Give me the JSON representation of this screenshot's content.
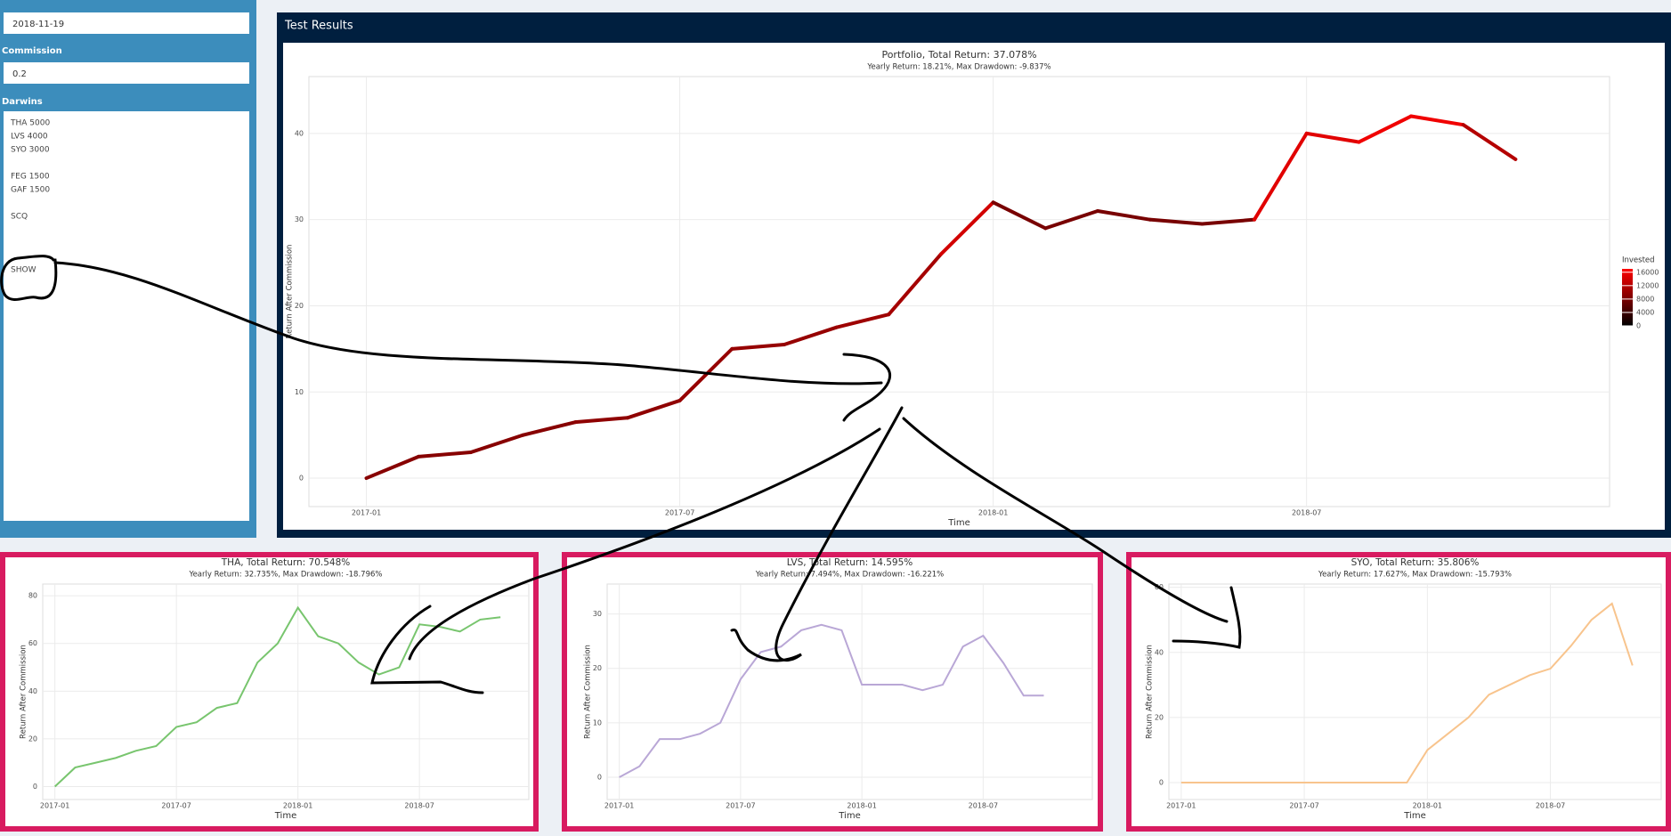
{
  "sidebar": {
    "end_date": "2018-11-19",
    "commission_label": "Commission",
    "commission": "0.2",
    "darwins_label": "Darwins",
    "darwins_lines": [
      "THA 5000",
      "LVS 4000",
      "SYO 3000",
      "FEG 1500",
      "GAF 1500",
      "SCQ",
      "SHOW"
    ]
  },
  "panel_title": "Test Results",
  "chart_data": [
    {
      "type": "line",
      "title": "Portfolio, Total Return: 37.078%",
      "subtitle": "Yearly Return: 18.21%, Max Drawdown: -9.837%",
      "x_label": "Time",
      "y_label": "Return After Commission",
      "x": [
        "2017-01",
        "2017-02",
        "2017-03",
        "2017-04",
        "2017-05",
        "2017-06",
        "2017-07",
        "2017-08",
        "2017-09",
        "2017-10",
        "2017-11",
        "2017-12",
        "2018-01",
        "2018-02",
        "2018-03",
        "2018-04",
        "2018-05",
        "2018-06",
        "2018-07",
        "2018-08",
        "2018-09",
        "2018-10",
        "2018-11"
      ],
      "xticks": [
        "2017-01",
        "2017-07",
        "2018-01",
        "2018-07"
      ],
      "ylim": [
        -3.3,
        46.6
      ],
      "yticks": [
        0,
        10,
        20,
        30,
        40
      ],
      "grid": true,
      "series": [
        {
          "values": [
            0,
            2.5,
            3,
            5,
            6.5,
            7,
            9,
            15,
            15.5,
            17.5,
            19,
            26,
            32,
            29,
            31,
            30,
            29.5,
            30,
            40,
            39,
            42,
            41,
            37
          ],
          "invested": [
            9000,
            9000,
            9000,
            9000,
            9000,
            9500,
            9500,
            10000,
            10000,
            10000,
            10500,
            11000,
            14000,
            8000,
            8000,
            8000,
            8000,
            8000,
            15000,
            15000,
            16000,
            16000,
            12000
          ]
        }
      ],
      "colorbar": {
        "title": "Invested",
        "lim": [
          0,
          17000
        ],
        "ticks": [
          0,
          4000,
          8000,
          12000,
          16000
        ],
        "colors": [
          "#000000",
          "#ff0000"
        ]
      }
    },
    {
      "type": "line",
      "title": "THA, Total Return: 70.548%",
      "subtitle": "Yearly Return: 32.735%, Max Drawdown: -18.796%",
      "x_label": "Time",
      "y_label": "Return After Commission",
      "x": [
        "2017-01",
        "2017-02",
        "2017-03",
        "2017-04",
        "2017-05",
        "2017-06",
        "2017-07",
        "2017-08",
        "2017-09",
        "2017-10",
        "2017-11",
        "2017-12",
        "2018-01",
        "2018-02",
        "2018-03",
        "2018-04",
        "2018-05",
        "2018-06",
        "2018-07",
        "2018-08",
        "2018-09",
        "2018-10",
        "2018-11"
      ],
      "xticks": [
        "2017-01",
        "2017-07",
        "2018-01",
        "2018-07"
      ],
      "ylim": [
        -5.4,
        84.9
      ],
      "yticks": [
        0,
        20,
        40,
        60,
        80
      ],
      "grid": true,
      "series": [
        {
          "color": "#78c56e",
          "values": [
            0,
            8,
            10,
            12,
            15,
            17,
            25,
            27,
            33,
            35,
            52,
            60,
            75,
            63,
            60,
            52,
            47,
            50,
            68,
            67,
            65,
            70,
            71
          ]
        }
      ]
    },
    {
      "type": "line",
      "title": "LVS, Total Return: 14.595%",
      "subtitle": "Yearly Return: 7.494%, Max Drawdown: -16.221%",
      "x_label": "Time",
      "y_label": "Return After Commission",
      "x": [
        "2017-01",
        "2017-02",
        "2017-03",
        "2017-04",
        "2017-05",
        "2017-06",
        "2017-07",
        "2017-08",
        "2017-09",
        "2017-10",
        "2017-11",
        "2017-12",
        "2018-01",
        "2018-02",
        "2018-03",
        "2018-04",
        "2018-05",
        "2018-06",
        "2018-07",
        "2018-08",
        "2018-09",
        "2018-10"
      ],
      "xticks": [
        "2017-01",
        "2017-07",
        "2018-01",
        "2018-07"
      ],
      "ylim": [
        -4.1,
        35.5
      ],
      "yticks": [
        0,
        10,
        20,
        30
      ],
      "grid": true,
      "series": [
        {
          "color": "#b9a7d6",
          "values": [
            0,
            2,
            7,
            7,
            8,
            10,
            18,
            23,
            24,
            27,
            28,
            27,
            17,
            17,
            17,
            16,
            17,
            24,
            26,
            21,
            15,
            15
          ]
        }
      ]
    },
    {
      "type": "line",
      "title": "SYO, Total Return: 35.806%",
      "subtitle": "Yearly Return: 17.627%, Max Drawdown: -15.793%",
      "x_label": "Time",
      "y_label": "Return After Commission",
      "x": [
        "2017-01",
        "2017-02",
        "2017-03",
        "2017-04",
        "2017-05",
        "2017-06",
        "2017-07",
        "2017-08",
        "2017-09",
        "2017-10",
        "2017-11",
        "2017-12",
        "2018-01",
        "2018-02",
        "2018-03",
        "2018-04",
        "2018-05",
        "2018-06",
        "2018-07",
        "2018-08",
        "2018-09",
        "2018-10",
        "2018-11"
      ],
      "xticks": [
        "2017-01",
        "2017-07",
        "2018-01",
        "2018-07"
      ],
      "ylim": [
        -5.2,
        61
      ],
      "yticks": [
        0,
        20,
        40,
        60
      ],
      "grid": true,
      "series": [
        {
          "color": "#f8c48d",
          "values": [
            0,
            0,
            0,
            0,
            0,
            0,
            0,
            0,
            0,
            0,
            0,
            0,
            10,
            15,
            20,
            27,
            30,
            33,
            35,
            42,
            50,
            55,
            36
          ]
        }
      ]
    }
  ]
}
